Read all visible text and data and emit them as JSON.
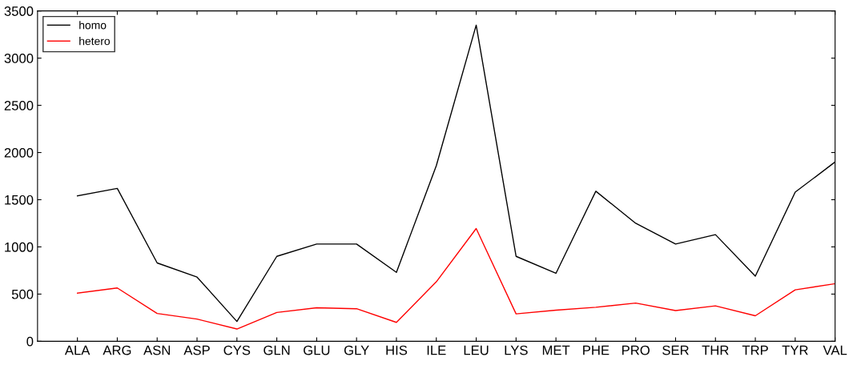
{
  "chart_data": {
    "type": "line",
    "categories": [
      "ALA",
      "ARG",
      "ASN",
      "ASP",
      "CYS",
      "GLN",
      "GLU",
      "GLY",
      "HIS",
      "ILE",
      "LEU",
      "LYS",
      "MET",
      "PHE",
      "PRO",
      "SER",
      "THR",
      "TRP",
      "TYR",
      "VAL"
    ],
    "series": [
      {
        "name": "homo",
        "color": "#000000",
        "values": [
          1540,
          1620,
          830,
          680,
          210,
          900,
          1030,
          1030,
          730,
          1860,
          3350,
          900,
          720,
          1590,
          1250,
          1030,
          1130,
          690,
          1580,
          1900
        ]
      },
      {
        "name": "hetero",
        "color": "#ff0000",
        "values": [
          510,
          565,
          295,
          235,
          130,
          305,
          355,
          345,
          200,
          630,
          1195,
          290,
          330,
          360,
          405,
          325,
          375,
          270,
          545,
          610
        ]
      }
    ],
    "ylim": [
      0,
      3500
    ],
    "yticks": [
      0,
      500,
      1000,
      1500,
      2000,
      2500,
      3000,
      3500
    ],
    "legend": "top left",
    "grid": false,
    "marker": "none",
    "line_style": "solid"
  }
}
